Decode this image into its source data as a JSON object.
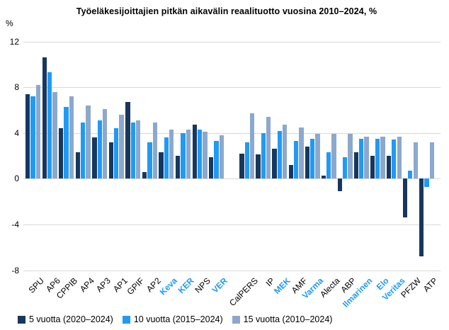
{
  "chart": {
    "unit": "%"
  },
  "legend": {
    "position": "bottom"
  },
  "chart_data": {
    "type": "bar",
    "title": "Työeläkesijoittajien pitkän aikavälin reaalituotto vuosina 2010–2024, %",
    "ylabel": "%",
    "ylim": [
      -8,
      12
    ],
    "yticks": [
      12,
      8,
      4,
      0,
      -4,
      -8
    ],
    "grid": true,
    "legend_position": "bottom",
    "categories": [
      "SPU",
      "AP6",
      "CPPIB",
      "AP4",
      "AP3",
      "AP1",
      "GPIF",
      "AP2",
      "Keva",
      "KER",
      "NPS",
      "VER",
      "CalPERS",
      "IP",
      "MEK",
      "AMF",
      "Varma",
      "Alecta",
      "ABP",
      "Ilmarinen",
      "Elo",
      "Veritas",
      "PFZW",
      "ATP"
    ],
    "highlighted_categories": [
      "Keva",
      "KER",
      "VER",
      "MEK",
      "Varma",
      "Ilmarinen",
      "Elo",
      "Veritas"
    ],
    "section_break_after": "VER",
    "series": [
      {
        "name": "5 vuotta (2020–2024)",
        "color": "#17375d",
        "values": [
          7.4,
          10.6,
          4.4,
          2.3,
          3.6,
          3.2,
          6.7,
          0.6,
          2.3,
          2.0,
          4.7,
          1.9,
          2.2,
          2.1,
          2.6,
          1.2,
          2.8,
          0.3,
          -1.1,
          2.3,
          2.0,
          2.0,
          -3.4,
          -6.8
        ]
      },
      {
        "name": "10 vuotta (2015–2024)",
        "color": "#1f9af5",
        "values": [
          7.2,
          9.3,
          6.3,
          4.9,
          5.1,
          4.4,
          4.9,
          3.2,
          3.6,
          4.0,
          4.3,
          3.3,
          3.2,
          4.0,
          4.2,
          3.3,
          3.5,
          2.3,
          1.9,
          3.5,
          3.5,
          3.4,
          0.7,
          -0.7
        ]
      },
      {
        "name": "15 vuotta (2010–2024)",
        "color": "#8ca8cd",
        "values": [
          8.2,
          7.6,
          7.2,
          6.4,
          6.1,
          5.6,
          5.1,
          4.9,
          4.3,
          4.3,
          4.1,
          3.8,
          5.7,
          5.4,
          4.7,
          4.5,
          3.9,
          3.9,
          3.9,
          3.7,
          3.7,
          3.7,
          3.2,
          3.2
        ]
      }
    ],
    "colors": {
      "highlight_label": "#1f9af5",
      "gridline": "#d9d9d9",
      "background": "#ffffff"
    }
  }
}
